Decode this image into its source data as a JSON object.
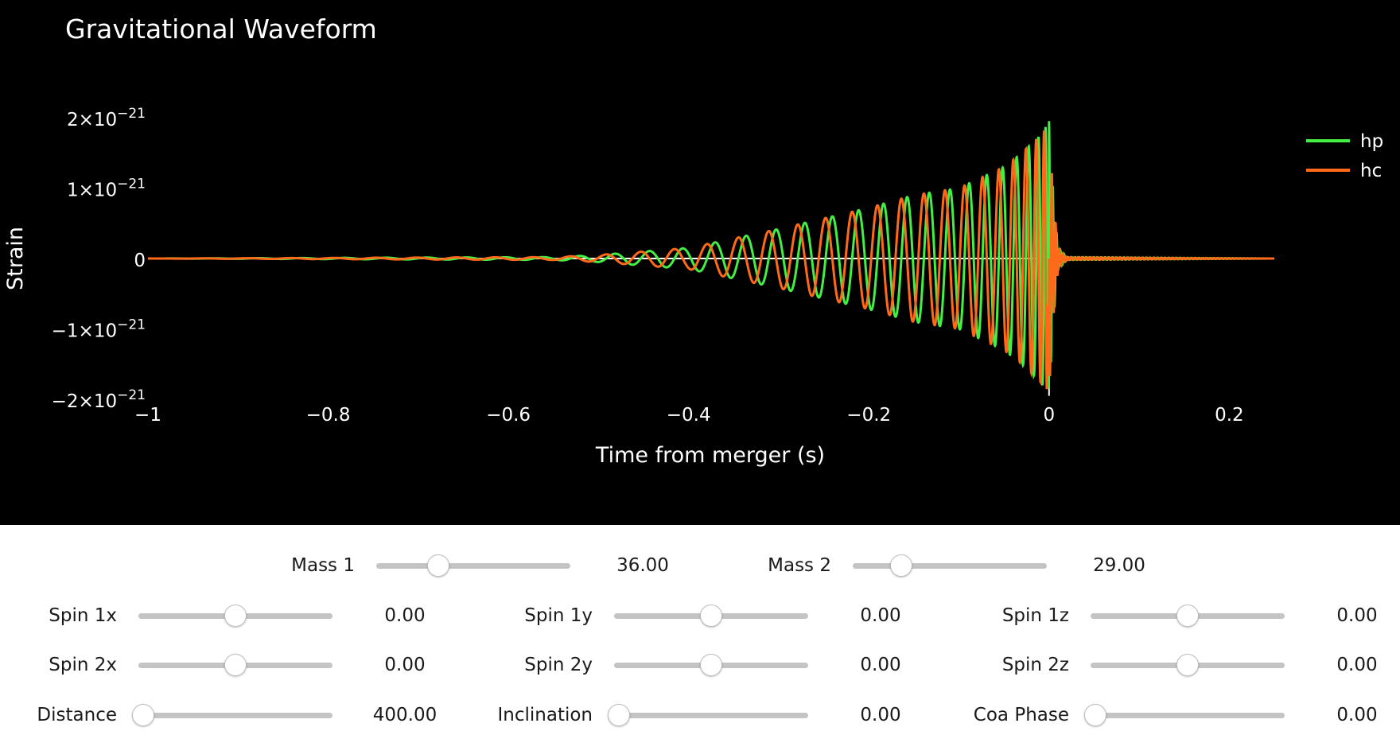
{
  "chart_data": {
    "type": "line",
    "title": "Gravitational Waveform",
    "xlabel": "Time from merger (s)",
    "ylabel": "Strain",
    "xlim": [
      -1,
      0.25
    ],
    "ylim": [
      -2e-21,
      2e-21
    ],
    "x_ticks": [
      "−1",
      "−0.8",
      "−0.6",
      "−0.4",
      "−0.2",
      "0",
      "0.2"
    ],
    "x_tick_values": [
      -1,
      -0.8,
      -0.6,
      -0.4,
      -0.2,
      0,
      0.2
    ],
    "y_ticks": [
      {
        "value": 2e-21,
        "mantissa": "2×10",
        "exp": "−21"
      },
      {
        "value": 1e-21,
        "mantissa": "1×10",
        "exp": "−21"
      },
      {
        "value": 0,
        "mantissa": "0",
        "exp": ""
      },
      {
        "value": -1e-21,
        "mantissa": "−1×10",
        "exp": "−21"
      },
      {
        "value": -2e-21,
        "mantissa": "−2×10",
        "exp": "−21"
      }
    ],
    "legend_position": "top-right",
    "series": [
      {
        "name": "hp",
        "color": "#44ee44",
        "envelope_t": [
          -1.0,
          -0.55,
          -0.5,
          -0.4,
          -0.3,
          -0.2,
          -0.15,
          -0.1,
          -0.05,
          -0.03,
          -0.01,
          0.0,
          0.005,
          0.01,
          0.02,
          0.25
        ],
        "envelope_amp": [
          0.0,
          2e-23,
          5e-23,
          1.5e-22,
          4.2e-22,
          7.2e-22,
          9e-22,
          1e-21,
          1.3e-21,
          1.5e-21,
          1.75e-21,
          1.95e-21,
          8e-22,
          1.5e-22,
          2e-23,
          0.0
        ]
      },
      {
        "name": "hc",
        "color": "#ff6a1a",
        "envelope_t": [
          -1.0,
          -0.55,
          -0.5,
          -0.4,
          -0.3,
          -0.2,
          -0.15,
          -0.1,
          -0.05,
          -0.03,
          -0.01,
          0.0,
          0.005,
          0.01,
          0.02,
          0.25
        ],
        "envelope_amp": [
          0.0,
          2e-23,
          5e-23,
          1.5e-22,
          4.2e-22,
          7.2e-22,
          9e-22,
          1e-21,
          1.3e-21,
          1.5e-21,
          1.75e-21,
          1.9e-21,
          8e-22,
          1.5e-22,
          2e-23,
          0.0
        ]
      }
    ]
  },
  "controls": {
    "rows": [
      [
        {
          "label": "Mass 1",
          "value": "36.00",
          "fraction": 0.32
        },
        {
          "label": "Mass 2",
          "value": "29.00",
          "fraction": 0.25
        }
      ],
      [
        {
          "label": "Spin 1x",
          "value": "0.00",
          "fraction": 0.5
        },
        {
          "label": "Spin 1y",
          "value": "0.00",
          "fraction": 0.5
        },
        {
          "label": "Spin 1z",
          "value": "0.00",
          "fraction": 0.5
        }
      ],
      [
        {
          "label": "Spin 2x",
          "value": "0.00",
          "fraction": 0.5
        },
        {
          "label": "Spin 2y",
          "value": "0.00",
          "fraction": 0.5
        },
        {
          "label": "Spin 2z",
          "value": "0.00",
          "fraction": 0.5
        }
      ],
      [
        {
          "label": "Distance",
          "value": "400.00",
          "fraction": 0.0
        },
        {
          "label": "Inclination",
          "value": "0.00",
          "fraction": 0.0
        },
        {
          "label": "Coa Phase",
          "value": "0.00",
          "fraction": 0.0
        }
      ]
    ]
  }
}
